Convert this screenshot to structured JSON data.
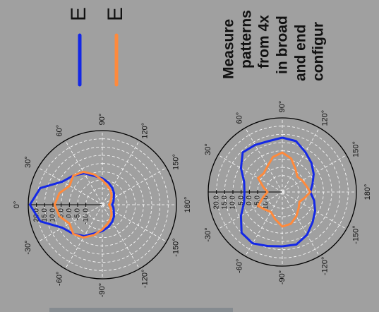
{
  "title_lines": [
    "Measure",
    "patterns",
    "from 4x",
    "in broad",
    "and end",
    "configur"
  ],
  "legend": [
    {
      "label": "E",
      "color": "#1428e6"
    },
    {
      "label": "E",
      "color": "#ff8a3c"
    }
  ],
  "chart_data": [
    {
      "type": "polar",
      "angles": [
        -180,
        -165,
        -150,
        -135,
        -120,
        -105,
        -90,
        -75,
        -60,
        -45,
        -30,
        -15,
        0,
        15,
        30,
        45,
        60,
        75,
        90,
        105,
        120,
        135,
        150,
        165
      ],
      "rlim": [
        -20,
        25
      ],
      "rticks": [
        {
          "value": 20,
          "label": "20.0"
        },
        {
          "value": 15,
          "label": "15.0"
        },
        {
          "value": 10,
          "label": "10.0"
        },
        {
          "value": 5,
          "label": "5.0"
        },
        {
          "value": 0,
          "label": "0.0"
        },
        {
          "value": -5,
          "label": "-5.0"
        },
        {
          "value": -10,
          "label": "-10.0"
        }
      ],
      "theta_ticks": [
        {
          "value": 0,
          "label": "0°"
        },
        {
          "value": 30,
          "label": "30°"
        },
        {
          "value": 60,
          "label": "60°"
        },
        {
          "value": 90,
          "label": "90°"
        },
        {
          "value": 120,
          "label": "120°"
        },
        {
          "value": 150,
          "label": "150°"
        },
        {
          "value": 180,
          "label": "180°"
        },
        {
          "value": -150,
          "label": "-150°"
        },
        {
          "value": -120,
          "label": "-120°"
        },
        {
          "value": -90,
          "label": "-90°"
        },
        {
          "value": -60,
          "label": "-60°"
        },
        {
          "value": -30,
          "label": "-30°"
        }
      ],
      "series": [
        {
          "color": "#1428e6",
          "values": [
            -14,
            -13,
            -12,
            -10,
            -8,
            -6,
            -4,
            -2,
            2,
            5,
            8,
            19,
            24,
            19,
            8,
            5,
            2,
            -2,
            -4,
            -6,
            -8,
            -10,
            -12,
            -13
          ]
        },
        {
          "color": "#ff8a3c",
          "values": [
            -16,
            -15,
            -14,
            -12,
            -10,
            -8,
            -5,
            -1,
            3,
            5,
            3,
            7,
            9,
            7,
            3,
            5,
            3,
            -1,
            -5,
            -8,
            -10,
            -12,
            -14,
            -15
          ]
        }
      ]
    },
    {
      "type": "polar",
      "angles": [
        -180,
        -165,
        -150,
        -135,
        -120,
        -105,
        -90,
        -75,
        -60,
        -45,
        -30,
        -15,
        0,
        15,
        30,
        45,
        60,
        75,
        90,
        105,
        120,
        135,
        150,
        165
      ],
      "rlim": [
        -20,
        25
      ],
      "rticks": [
        {
          "value": 20,
          "label": "20.0"
        },
        {
          "value": 15,
          "label": "15.0"
        },
        {
          "value": 10,
          "label": "10.0"
        },
        {
          "value": 5,
          "label": "5.0"
        },
        {
          "value": 0,
          "label": "0.0"
        },
        {
          "value": -5,
          "label": "-5.0"
        },
        {
          "value": -10,
          "label": "-10.0"
        }
      ],
      "theta_ticks": [
        {
          "value": 30,
          "label": "30°"
        },
        {
          "value": 60,
          "label": "60°"
        },
        {
          "value": 90,
          "label": "90°"
        },
        {
          "value": 120,
          "label": "120°"
        },
        {
          "value": 150,
          "label": "150°"
        },
        {
          "value": 180,
          "label": "180°"
        },
        {
          "value": -150,
          "label": "-150°"
        },
        {
          "value": -120,
          "label": "-120°"
        },
        {
          "value": -90,
          "label": "-90°"
        },
        {
          "value": -60,
          "label": "-60°"
        },
        {
          "value": -30,
          "label": "-30°"
        }
      ],
      "series": [
        {
          "color": "#1428e6",
          "values": [
            -3,
            0,
            3,
            6,
            10,
            13,
            13,
            14,
            16,
            15,
            9,
            4,
            3,
            4,
            9,
            14,
            13,
            12,
            13,
            12,
            8,
            5,
            2,
            -1
          ]
        },
        {
          "color": "#ff8a3c",
          "values": [
            -3,
            -6,
            -8,
            -6,
            -3,
            0,
            1,
            -3,
            -6,
            -5,
            -3,
            -8,
            -11,
            -8,
            -3,
            -4,
            -2,
            2,
            4,
            1,
            -4,
            -7,
            -6,
            -5
          ]
        }
      ]
    }
  ]
}
